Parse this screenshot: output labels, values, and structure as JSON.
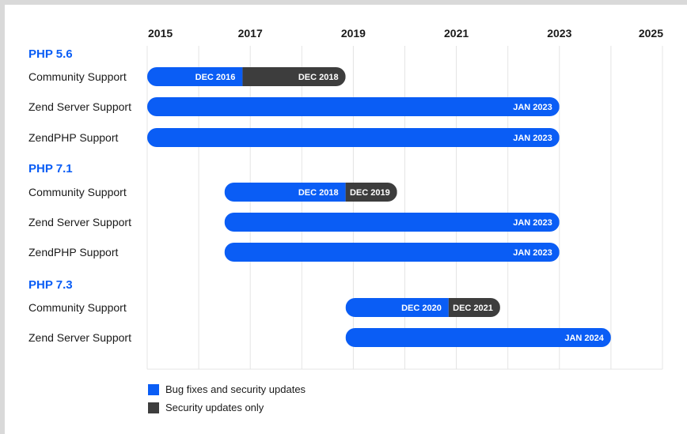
{
  "chart_data": {
    "type": "timeline",
    "x_axis": {
      "ticks": [
        "2015",
        "2017",
        "2019",
        "2021",
        "2023",
        "2025"
      ],
      "range": [
        2015,
        2025
      ]
    },
    "grid": true,
    "groups": [
      {
        "title": "PHP 5.6",
        "rows": [
          {
            "label": "Community Support",
            "start": 2015.0,
            "segments": [
              {
                "kind": "bug",
                "end": 2016.85,
                "label": "DEC 2016"
              },
              {
                "kind": "security",
                "end": 2018.85,
                "label": "DEC 2018"
              }
            ]
          },
          {
            "label": "Zend Server Support",
            "start": 2015.0,
            "segments": [
              {
                "kind": "bug",
                "end": 2023.0,
                "label": "JAN 2023"
              }
            ]
          },
          {
            "label": "ZendPHP Support",
            "start": 2015.0,
            "segments": [
              {
                "kind": "bug",
                "end": 2023.0,
                "label": "JAN 2023"
              }
            ]
          }
        ]
      },
      {
        "title": "PHP 7.1",
        "rows": [
          {
            "label": "Community Support",
            "start": 2016.5,
            "segments": [
              {
                "kind": "bug",
                "end": 2018.85,
                "label": "DEC 2018"
              },
              {
                "kind": "security",
                "end": 2019.85,
                "label": "DEC 2019"
              }
            ]
          },
          {
            "label": "Zend Server Support",
            "start": 2016.5,
            "segments": [
              {
                "kind": "bug",
                "end": 2023.0,
                "label": "JAN 2023"
              }
            ]
          },
          {
            "label": "ZendPHP Support",
            "start": 2016.5,
            "segments": [
              {
                "kind": "bug",
                "end": 2023.0,
                "label": "JAN 2023"
              }
            ]
          }
        ]
      },
      {
        "title": "PHP 7.3",
        "rows": [
          {
            "label": "Community Support",
            "start": 2018.85,
            "segments": [
              {
                "kind": "bug",
                "end": 2020.85,
                "label": "DEC 2020"
              },
              {
                "kind": "security",
                "end": 2021.85,
                "label": "DEC 2021"
              }
            ]
          },
          {
            "label": "Zend Server Support",
            "start": 2018.85,
            "segments": [
              {
                "kind": "bug",
                "end": 2024.0,
                "label": "JAN 2024"
              }
            ]
          }
        ]
      }
    ]
  },
  "legend": [
    {
      "kind": "bug",
      "label": "Bug fixes and security updates",
      "color": "#0a5df5"
    },
    {
      "kind": "security",
      "label": "Security updates only",
      "color": "#3d3d3d"
    }
  ],
  "colors": {
    "bug": "#0a5df5",
    "security": "#3d3d3d",
    "group_title": "#0a5df5",
    "grid": "#e4e4e4",
    "text": "#1a1a1a"
  }
}
